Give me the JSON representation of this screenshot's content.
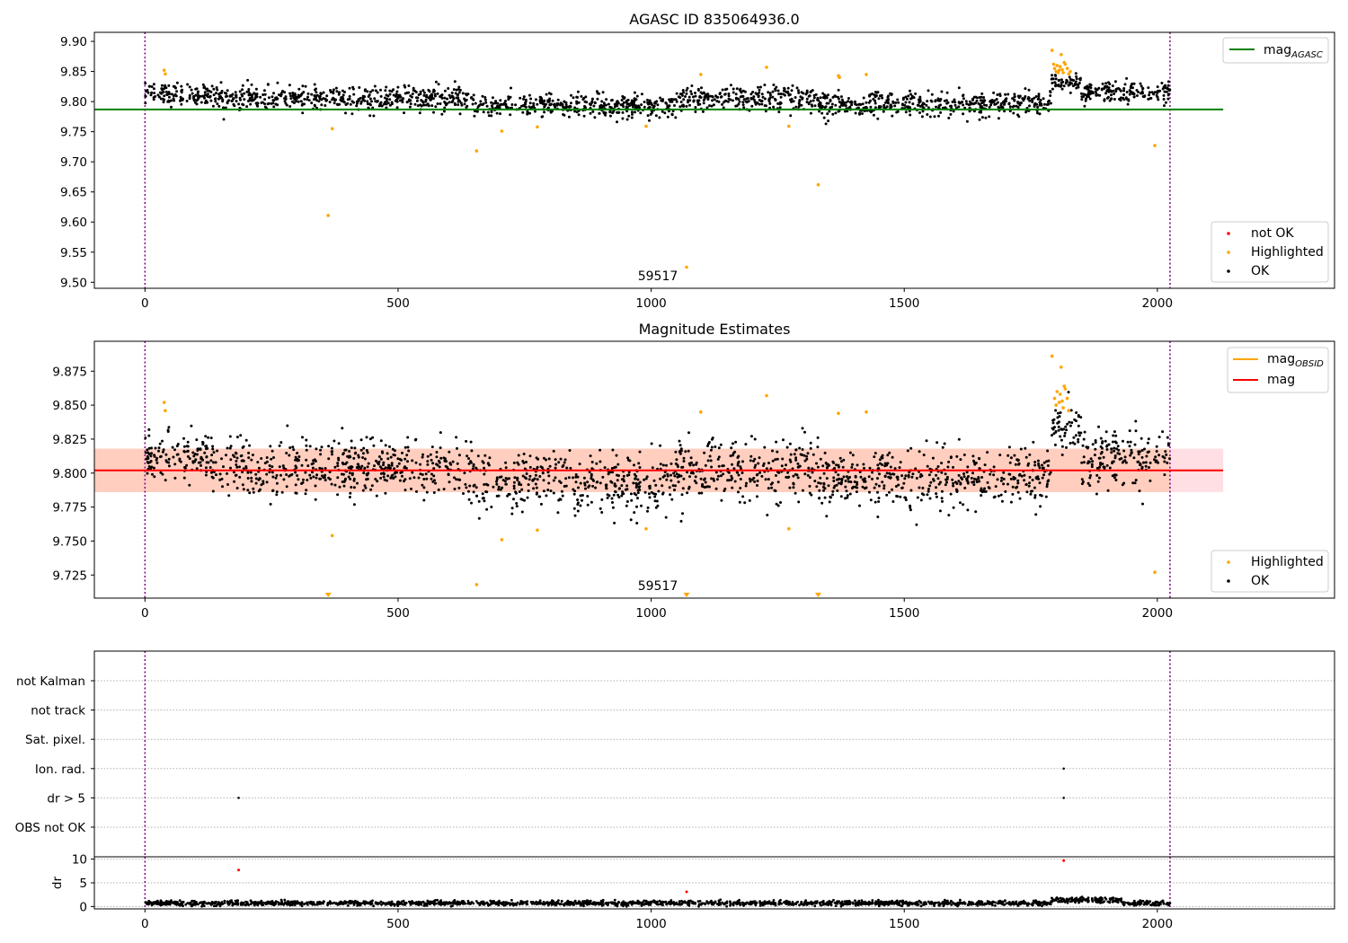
{
  "chart_data": [
    {
      "type": "scatter",
      "title": "AGASC ID 835064936.0",
      "xlim": [
        -100,
        2350
      ],
      "ylim": [
        9.49,
        9.915
      ],
      "x_ticks": [
        0,
        500,
        1000,
        1500,
        2000
      ],
      "y_ticks": [
        9.5,
        9.55,
        9.6,
        9.65,
        9.7,
        9.75,
        9.8,
        9.85,
        9.9
      ],
      "y_tick_labels": [
        "9.50",
        "9.55",
        "9.60",
        "9.65",
        "9.70",
        "9.75",
        "9.80",
        "9.85",
        "9.90"
      ],
      "grid": false,
      "vlines": [
        0,
        2025
      ],
      "vline_color": "#800080",
      "marker_label": {
        "text": "59517",
        "x": 1010,
        "y": 9.502
      },
      "reference_lines": [
        {
          "name_main": "mag",
          "name_sub": "AGASC",
          "y": 9.787,
          "x_range": [
            -100,
            2130
          ],
          "color": "#008000"
        }
      ],
      "legend_top": {
        "placement": "top-right"
      },
      "legend_bottom": {
        "placement": "bottom-right",
        "entries": [
          {
            "name": "not OK",
            "color": "#ff0000"
          },
          {
            "name": "Highlighted",
            "color": "#ffa500"
          },
          {
            "name": "OK",
            "color": "#000000"
          }
        ]
      },
      "series": [
        {
          "name": "OK",
          "color": "#000000",
          "description": "approx. 1900 observations scattered around 9.80 (range 9.77-9.84) from x=0 to x=2025",
          "segments": [
            {
              "x": [
                0,
                150
              ],
              "center": 9.812,
              "spread": 0.016
            },
            {
              "x": [
                150,
                650
              ],
              "center": 9.805,
              "spread": 0.018
            },
            {
              "x": [
                650,
                1050
              ],
              "center": 9.793,
              "spread": 0.017
            },
            {
              "x": [
                1050,
                1330
              ],
              "center": 9.804,
              "spread": 0.019
            },
            {
              "x": [
                1330,
                1790
              ],
              "center": 9.796,
              "spread": 0.018
            },
            {
              "x": [
                1790,
                1850
              ],
              "center": 9.83,
              "spread": 0.014
            },
            {
              "x": [
                1850,
                2025
              ],
              "center": 9.815,
              "spread": 0.017
            }
          ]
        },
        {
          "name": "Highlighted",
          "color": "#ffa500",
          "x": [
            38,
            40,
            370,
            362,
            655,
            705,
            775,
            990,
            1098,
            1228,
            1272,
            1330,
            1370,
            1372,
            1425,
            1070,
            1995,
            1792,
            1797,
            1802,
            1806,
            1810,
            1814,
            1818,
            1822,
            1825,
            1800,
            1795,
            1808,
            1816,
            1812,
            1804,
            1828
          ],
          "y": [
            9.852,
            9.846,
            9.755,
            9.611,
            9.718,
            9.751,
            9.758,
            9.759,
            9.845,
            9.857,
            9.759,
            9.662,
            9.843,
            9.84,
            9.845,
            9.525,
            9.727,
            9.885,
            9.855,
            9.86,
            9.852,
            9.878,
            9.848,
            9.862,
            9.855,
            9.846,
            9.85,
            9.862,
            9.858,
            9.865,
            9.853,
            9.848,
            9.85
          ]
        }
      ]
    },
    {
      "type": "scatter",
      "title": "Magnitude Estimates",
      "xlim": [
        -100,
        2350
      ],
      "ylim": [
        9.708,
        9.897
      ],
      "x_ticks": [
        0,
        500,
        1000,
        1500,
        2000
      ],
      "y_ticks": [
        9.725,
        9.75,
        9.775,
        9.8,
        9.825,
        9.85,
        9.875
      ],
      "y_tick_labels": [
        "9.725",
        "9.750",
        "9.775",
        "9.800",
        "9.825",
        "9.850",
        "9.875"
      ],
      "grid": false,
      "vlines": [
        0,
        2025
      ],
      "vline_color": "#800080",
      "marker_label": {
        "text": "59517",
        "x": 1010,
        "y": 9.714
      },
      "reference_lines": [
        {
          "name_main": "mag",
          "name_sub": "",
          "y": 9.802,
          "x_range": [
            -100,
            2130
          ],
          "color": "#ff0000"
        }
      ],
      "bands": [
        {
          "y_range": [
            9.786,
            9.818
          ],
          "x_range": [
            -100,
            2130
          ],
          "color": "#ffb0b8",
          "opacity": 0.4
        },
        {
          "y_range": [
            9.786,
            9.818
          ],
          "x_range": [
            -100,
            2025
          ],
          "color": "#ffb07a",
          "opacity": 0.35
        }
      ],
      "legend_top": {
        "placement": "top-right",
        "entries": [
          {
            "name_main": "mag",
            "name_sub": "OBSID",
            "color": "#ffa500"
          },
          {
            "name_main": "mag",
            "name_sub": "",
            "color": "#ff0000"
          }
        ]
      },
      "legend_bottom": {
        "placement": "bottom-right",
        "entries": [
          {
            "name": "Highlighted",
            "color": "#ffa500"
          },
          {
            "name": "OK",
            "color": "#000000"
          }
        ]
      },
      "out_of_range_markers": {
        "color": "#ffa500",
        "x": [
          362,
          1070,
          1330
        ]
      },
      "series": [
        {
          "name": "OK",
          "color": "#000000",
          "description": "approx. 1900 observations scattered around 9.80 (range 9.76-9.84) from x=0 to x=2025",
          "segments": [
            {
              "x": [
                0,
                150
              ],
              "center": 9.812,
              "spread": 0.018
            },
            {
              "x": [
                150,
                650
              ],
              "center": 9.803,
              "spread": 0.02
            },
            {
              "x": [
                650,
                1050
              ],
              "center": 9.792,
              "spread": 0.02
            },
            {
              "x": [
                1050,
                1330
              ],
              "center": 9.803,
              "spread": 0.021
            },
            {
              "x": [
                1330,
                1790
              ],
              "center": 9.795,
              "spread": 0.02
            },
            {
              "x": [
                1790,
                1850
              ],
              "center": 9.832,
              "spread": 0.016
            },
            {
              "x": [
                1850,
                2025
              ],
              "center": 9.812,
              "spread": 0.019
            }
          ]
        },
        {
          "name": "Highlighted",
          "color": "#ffa500",
          "x": [
            38,
            40,
            370,
            655,
            705,
            775,
            990,
            1098,
            1228,
            1272,
            1370,
            1425,
            1995,
            1792,
            1797,
            1802,
            1806,
            1810,
            1814,
            1818,
            1822,
            1825,
            1800,
            1808,
            1816,
            1812
          ],
          "y": [
            9.852,
            9.846,
            9.754,
            9.718,
            9.751,
            9.758,
            9.759,
            9.845,
            9.857,
            9.759,
            9.844,
            9.845,
            9.727,
            9.886,
            9.855,
            9.86,
            9.852,
            9.878,
            9.848,
            9.862,
            9.855,
            9.846,
            9.85,
            9.858,
            9.864,
            9.853
          ]
        }
      ]
    },
    {
      "type": "scatter",
      "title": "",
      "xlim": [
        -100,
        2350
      ],
      "categories": [
        "not Kalman",
        "not track",
        "Sat. pixel.",
        "Ion. rad.",
        "dr > 5",
        "OBS not OK"
      ],
      "grid": true,
      "vlines": [
        0,
        2025
      ],
      "vline_color": "#800080",
      "series": [
        {
          "name": "",
          "color": "#000000",
          "points": [
            {
              "x": 185,
              "category": "dr > 5"
            },
            {
              "x": 1815,
              "category": "dr > 5"
            },
            {
              "x": 1815,
              "category": "Ion. rad."
            }
          ]
        }
      ]
    },
    {
      "type": "scatter",
      "title": "",
      "ylabel": "dr",
      "xlim": [
        -100,
        2350
      ],
      "ylim": [
        -0.5,
        10.5
      ],
      "x_ticks": [
        0,
        500,
        1000,
        1500,
        2000
      ],
      "y_ticks": [
        0,
        5,
        10
      ],
      "y_tick_labels": [
        "0",
        "5",
        "10"
      ],
      "grid": true,
      "vlines": [
        0,
        2025
      ],
      "vline_color": "#800080",
      "series": [
        {
          "name": "OK",
          "color": "#000000",
          "description": "dr values mostly between 0 and 1.5 across all observations, slightly higher (1-2.5) between x=1790 and x=1930",
          "segments": [
            {
              "x": [
                0,
                1790
              ],
              "center": 0.7,
              "spread": 0.45
            },
            {
              "x": [
                1790,
                1930
              ],
              "center": 1.3,
              "spread": 0.6
            },
            {
              "x": [
                1930,
                2025
              ],
              "center": 0.7,
              "spread": 0.45
            }
          ]
        },
        {
          "name": "not OK",
          "color": "#ff0000",
          "x": [
            185,
            1070,
            1815
          ],
          "y": [
            7.7,
            3.1,
            9.7
          ]
        }
      ]
    }
  ]
}
